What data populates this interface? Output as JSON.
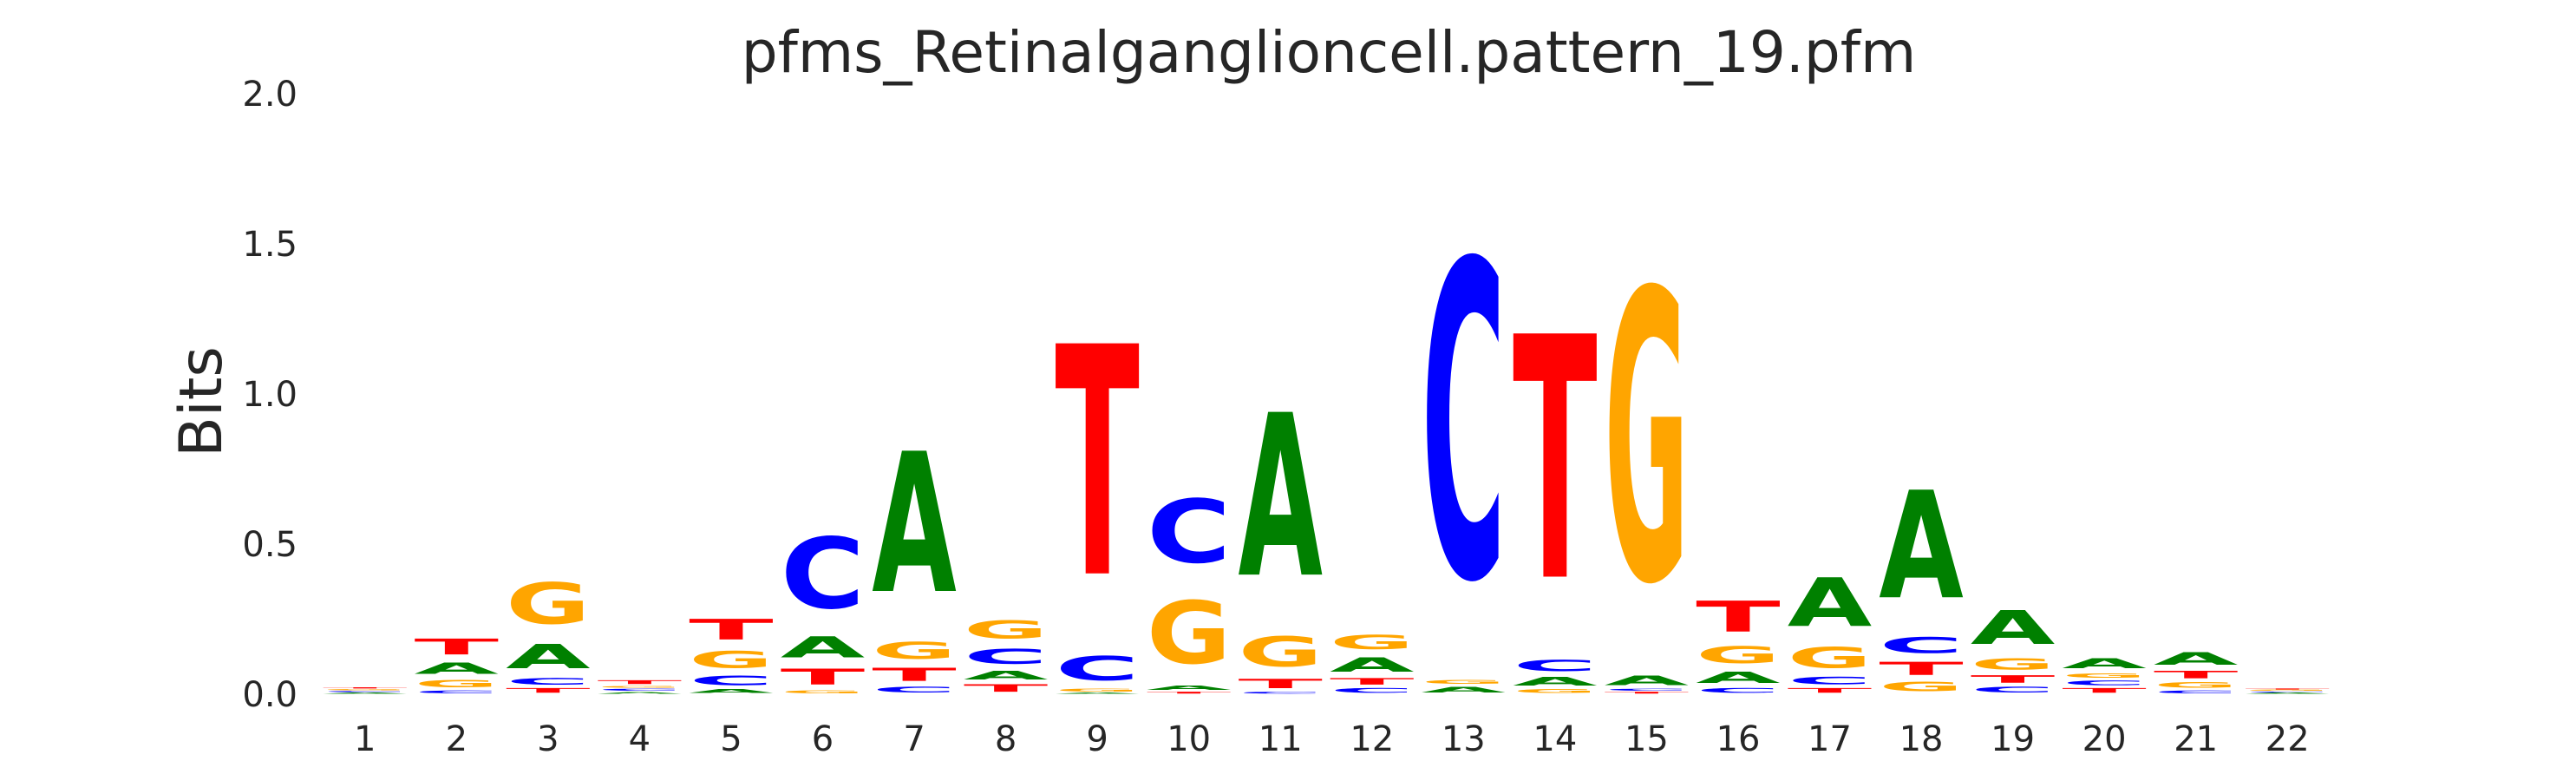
{
  "chart_data": {
    "type": "sequence-logo",
    "title": "pfms_Retinalganglioncell.pattern_19.pfm",
    "xlabel": "",
    "ylabel": "Bits",
    "ylim": [
      0,
      2.0
    ],
    "yticks": [
      "0.0",
      "0.5",
      "1.0",
      "1.5",
      "2.0"
    ],
    "categories": [
      "1",
      "2",
      "3",
      "4",
      "5",
      "6",
      "7",
      "8",
      "9",
      "10",
      "11",
      "12",
      "13",
      "14",
      "15",
      "16",
      "17",
      "18",
      "19",
      "20",
      "21",
      "22"
    ],
    "grid": false,
    "letter_colors": {
      "A": "#008000",
      "C": "#0000ff",
      "G": "#ffa500",
      "T": "#ff0000"
    },
    "positions": [
      [
        [
          "A",
          0.006
        ],
        [
          "C",
          0.006
        ],
        [
          "G",
          0.006
        ],
        [
          "T",
          0.006
        ]
      ],
      [
        [
          "C",
          0.015
        ],
        [
          "G",
          0.04
        ],
        [
          "A",
          0.06
        ],
        [
          "T",
          0.085
        ]
      ],
      [
        [
          "T",
          0.025
        ],
        [
          "C",
          0.035
        ],
        [
          "A",
          0.13
        ],
        [
          "G",
          0.22
        ]
      ],
      [
        [
          "A",
          0.01
        ],
        [
          "C",
          0.01
        ],
        [
          "G",
          0.01
        ],
        [
          "T",
          0.02
        ]
      ],
      [
        [
          "A",
          0.02
        ],
        [
          "C",
          0.05
        ],
        [
          "G",
          0.09
        ],
        [
          "T",
          0.11
        ]
      ],
      [
        [
          "G",
          0.015
        ],
        [
          "T",
          0.085
        ],
        [
          "A",
          0.11
        ],
        [
          "C",
          0.38
        ]
      ],
      [
        [
          "C",
          0.03
        ],
        [
          "T",
          0.07
        ],
        [
          "G",
          0.09
        ],
        [
          "A",
          0.75
        ]
      ],
      [
        [
          "T",
          0.04
        ],
        [
          "A",
          0.045
        ],
        [
          "C",
          0.08
        ],
        [
          "G",
          0.095
        ]
      ],
      [
        [
          "A",
          0.005
        ],
        [
          "G",
          0.015
        ],
        [
          "C",
          0.13
        ],
        [
          "T",
          1.23
        ]
      ],
      [
        [
          "T",
          0.01
        ],
        [
          "A",
          0.025
        ],
        [
          "G",
          0.335
        ],
        [
          "C",
          0.34
        ]
      ],
      [
        [
          "C",
          0.01
        ],
        [
          "T",
          0.05
        ],
        [
          "G",
          0.16
        ],
        [
          "A",
          0.87
        ]
      ],
      [
        [
          "C",
          0.025
        ],
        [
          "T",
          0.035
        ],
        [
          "A",
          0.075
        ],
        [
          "G",
          0.075
        ]
      ],
      [
        [
          "A",
          0.03
        ],
        [
          "G",
          0.02
        ],
        [
          "C",
          1.69
        ]
      ],
      [
        [
          "G",
          0.02
        ],
        [
          "A",
          0.045
        ],
        [
          "C",
          0.06
        ],
        [
          "T",
          1.3
        ]
      ],
      [
        [
          "T",
          0.01
        ],
        [
          "C",
          0.01
        ],
        [
          "A",
          0.05
        ],
        [
          "G",
          1.55
        ]
      ],
      [
        [
          "C",
          0.025
        ],
        [
          "A",
          0.06
        ],
        [
          "G",
          0.09
        ],
        [
          "T",
          0.165
        ]
      ],
      [
        [
          "T",
          0.025
        ],
        [
          "C",
          0.04
        ],
        [
          "G",
          0.11
        ],
        [
          "A",
          0.26
        ]
      ],
      [
        [
          "G",
          0.05
        ],
        [
          "T",
          0.07
        ],
        [
          "C",
          0.085
        ],
        [
          "A",
          0.575
        ]
      ],
      [
        [
          "C",
          0.03
        ],
        [
          "T",
          0.04
        ],
        [
          "G",
          0.06
        ],
        [
          "A",
          0.18
        ]
      ],
      [
        [
          "T",
          0.025
        ],
        [
          "C",
          0.025
        ],
        [
          "G",
          0.025
        ],
        [
          "A",
          0.055
        ]
      ],
      [
        [
          "C",
          0.015
        ],
        [
          "G",
          0.03
        ],
        [
          "T",
          0.04
        ],
        [
          "A",
          0.065
        ]
      ],
      [
        [
          "A",
          0.005
        ],
        [
          "C",
          0.005
        ],
        [
          "G",
          0.005
        ],
        [
          "T",
          0.005
        ]
      ]
    ]
  }
}
